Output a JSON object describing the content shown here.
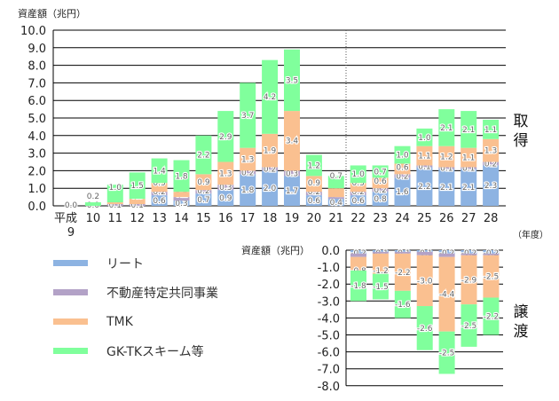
{
  "chart_data": [
    {
      "type": "bar",
      "stacked": true,
      "title": "取得",
      "ylabel": "資産額（兆円）",
      "xlabel": "（年度）",
      "ylim": [
        0,
        10
      ],
      "yticks": [
        "0.0",
        "1.0",
        "2.0",
        "3.0",
        "4.0",
        "5.0",
        "6.0",
        "7.0",
        "8.0",
        "9.0",
        "10.0"
      ],
      "categories": [
        "平成\n9",
        "10",
        "11",
        "12",
        "13",
        "14",
        "15",
        "16",
        "17",
        "18",
        "19",
        "20",
        "21",
        "22",
        "23",
        "24",
        "25",
        "26",
        "27",
        "28"
      ],
      "series": [
        {
          "name": "リート",
          "color": "#8db3e2",
          "values": [
            null,
            null,
            null,
            null,
            0.6,
            0.3,
            0.7,
            0.9,
            1.8,
            2.0,
            1.7,
            0.6,
            0.4,
            0.6,
            0.8,
            1.6,
            2.2,
            2.1,
            2.1,
            2.3
          ]
        },
        {
          "name": "不動産特定共同事業",
          "color": "#b3a2c7",
          "values": [
            null,
            null,
            0.1,
            0.1,
            0.2,
            0.2,
            0.2,
            0.3,
            0.2,
            0.2,
            0.3,
            0.2,
            0.1,
            0.2,
            0.2,
            0.2,
            0.1,
            0.1,
            0.1,
            0.2
          ]
        },
        {
          "name": "TMK",
          "color": "#fac090",
          "values": [
            null,
            0.0,
            0.1,
            0.3,
            0.5,
            0.3,
            0.9,
            1.3,
            1.3,
            1.9,
            3.4,
            0.9,
            0.5,
            0.5,
            0.6,
            0.6,
            1.1,
            1.2,
            1.1,
            1.3
          ]
        },
        {
          "name": "GK-TKスキーム等",
          "color": "#80ff9c",
          "values": [
            0.0,
            0.2,
            1.0,
            1.5,
            1.4,
            1.8,
            2.2,
            2.9,
            3.7,
            4.2,
            3.5,
            1.2,
            0.7,
            1.0,
            0.7,
            1.0,
            1.0,
            2.1,
            2.1,
            1.1
          ]
        }
      ]
    },
    {
      "type": "bar",
      "stacked": true,
      "title": "譲渡",
      "ylabel": "資産額（兆円）",
      "ylim": [
        -8,
        0
      ],
      "yticks": [
        "0.0",
        "-1.0",
        "-2.0",
        "-3.0",
        "-4.0",
        "-5.0",
        "-6.0",
        "-7.0",
        "-8.0"
      ],
      "categories": [
        "22",
        "23",
        "24",
        "25",
        "26",
        "27",
        "28"
      ],
      "series": [
        {
          "name": "リート",
          "color": "#8db3e2",
          "values": [
            -0.2,
            -0.1,
            -0.1,
            -0.1,
            -0.2,
            -0.2,
            -0.2
          ]
        },
        {
          "name": "不動産特定共同事業",
          "color": "#b3a2c7",
          "values": [
            -0.2,
            -0.1,
            -0.1,
            -0.2,
            -0.2,
            -0.1,
            -0.1
          ]
        },
        {
          "name": "TMK",
          "color": "#fac090",
          "values": [
            -0.8,
            -1.2,
            -2.2,
            -3.0,
            -4.4,
            -2.9,
            -2.5
          ]
        },
        {
          "name": "GK-TKスキーム等",
          "color": "#80ff9c",
          "values": [
            -1.8,
            -1.5,
            -1.6,
            -2.6,
            -2.5,
            -2.5,
            -2.2
          ]
        }
      ]
    }
  ],
  "labels": {
    "upper_ylabel": "資産額（兆円）",
    "lower_ylabel": "資産額（兆円）",
    "acquire_1": "取",
    "acquire_2": "得",
    "transfer_1": "譲",
    "transfer_2": "渡",
    "xunit": "（年度）"
  }
}
